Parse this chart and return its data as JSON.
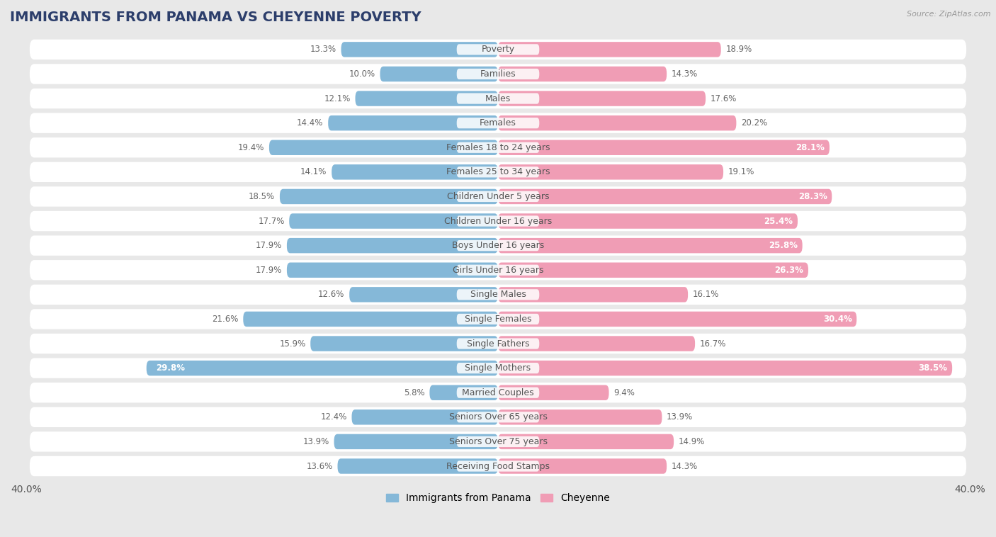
{
  "title": "IMMIGRANTS FROM PANAMA VS CHEYENNE POVERTY",
  "source": "Source: ZipAtlas.com",
  "categories": [
    "Poverty",
    "Families",
    "Males",
    "Females",
    "Females 18 to 24 years",
    "Females 25 to 34 years",
    "Children Under 5 years",
    "Children Under 16 years",
    "Boys Under 16 years",
    "Girls Under 16 years",
    "Single Males",
    "Single Females",
    "Single Fathers",
    "Single Mothers",
    "Married Couples",
    "Seniors Over 65 years",
    "Seniors Over 75 years",
    "Receiving Food Stamps"
  ],
  "panama_values": [
    13.3,
    10.0,
    12.1,
    14.4,
    19.4,
    14.1,
    18.5,
    17.7,
    17.9,
    17.9,
    12.6,
    21.6,
    15.9,
    29.8,
    5.8,
    12.4,
    13.9,
    13.6
  ],
  "cheyenne_values": [
    18.9,
    14.3,
    17.6,
    20.2,
    28.1,
    19.1,
    28.3,
    25.4,
    25.8,
    26.3,
    16.1,
    30.4,
    16.7,
    38.5,
    9.4,
    13.9,
    14.9,
    14.3
  ],
  "panama_color": "#85b8d8",
  "cheyenne_color": "#f09db5",
  "panama_label": "Immigrants from Panama",
  "cheyenne_label": "Cheyenne",
  "xlim": 40.0,
  "outer_bg": "#e8e8e8",
  "row_bg": "#ffffff",
  "title_fontsize": 14,
  "label_fontsize": 9,
  "value_fontsize": 8.5
}
